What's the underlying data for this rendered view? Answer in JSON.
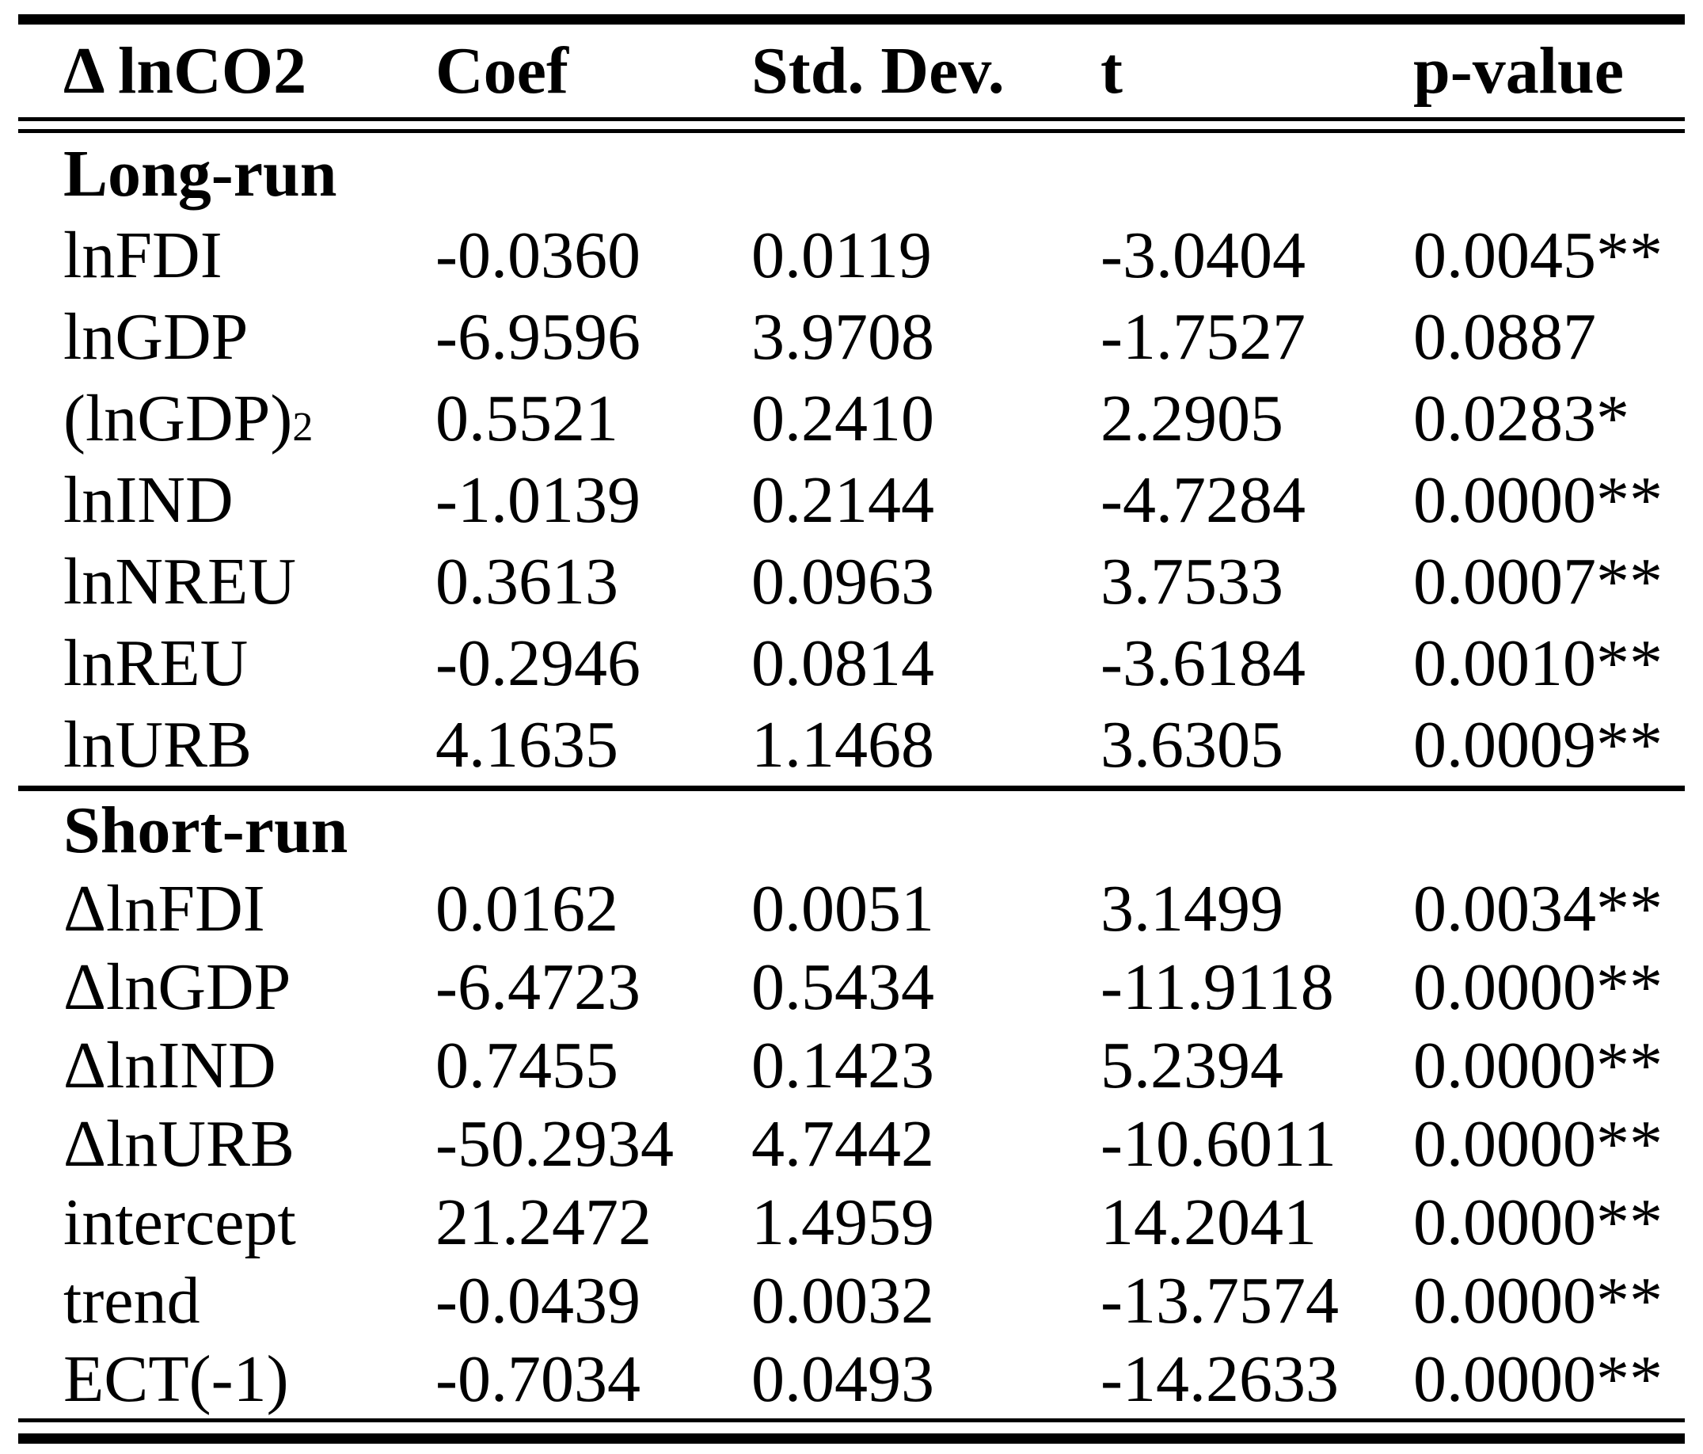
{
  "table": {
    "columns": [
      "Δ lnCO2",
      "Coef",
      "Std. Dev.",
      "t",
      "p-value"
    ],
    "sections": [
      {
        "label": "Long-run",
        "rows": [
          {
            "variable": "lnFDI",
            "coef": "-0.0360",
            "std_dev": "0.0119",
            "t": "-3.0404",
            "p_value": "0.0045**"
          },
          {
            "variable": "lnGDP",
            "coef": "-6.9596",
            "std_dev": "3.9708",
            "t": "-1.7527",
            "p_value": "0.0887"
          },
          {
            "variable": "(lnGDP)²",
            "coef": "0.5521",
            "std_dev": "0.2410",
            "t": "2.2905",
            "p_value": "0.0283*"
          },
          {
            "variable": "lnIND",
            "coef": "-1.0139",
            "std_dev": "0.2144",
            "t": "-4.7284",
            "p_value": "0.0000**"
          },
          {
            "variable": "lnNREU",
            "coef": "0.3613",
            "std_dev": "0.0963",
            "t": "3.7533",
            "p_value": "0.0007**"
          },
          {
            "variable": "lnREU",
            "coef": "-0.2946",
            "std_dev": "0.0814",
            "t": "-3.6184",
            "p_value": "0.0010**"
          },
          {
            "variable": "lnURB",
            "coef": "4.1635",
            "std_dev": "1.1468",
            "t": "3.6305",
            "p_value": "0.0009**"
          }
        ]
      },
      {
        "label": "Short-run",
        "rows": [
          {
            "variable": "ΔlnFDI",
            "coef": "0.0162",
            "std_dev": "0.0051",
            "t": "3.1499",
            "p_value": "0.0034**"
          },
          {
            "variable": "ΔlnGDP",
            "coef": "-6.4723",
            "std_dev": "0.5434",
            "t": "-11.9118",
            "p_value": "0.0000**"
          },
          {
            "variable": "ΔlnIND",
            "coef": "0.7455",
            "std_dev": "0.1423",
            "t": "5.2394",
            "p_value": "0.0000**"
          },
          {
            "variable": "ΔlnURB",
            "coef": "-50.2934",
            "std_dev": "4.7442",
            "t": "-10.6011",
            "p_value": "0.0000**"
          },
          {
            "variable": "intercept",
            "coef": "21.2472",
            "std_dev": "1.4959",
            "t": "14.2041",
            "p_value": "0.0000**"
          },
          {
            "variable": "trend",
            "coef": "-0.0439",
            "std_dev": "0.0032",
            "t": "-13.7574",
            "p_value": "0.0000**"
          },
          {
            "variable": "ECT(-1)",
            "coef": "-0.7034",
            "std_dev": "0.0493",
            "t": "-14.2633",
            "p_value": "0.0000**"
          }
        ]
      }
    ]
  },
  "colors": {
    "text": "#000000",
    "background": "#ffffff",
    "rule": "#000000"
  }
}
